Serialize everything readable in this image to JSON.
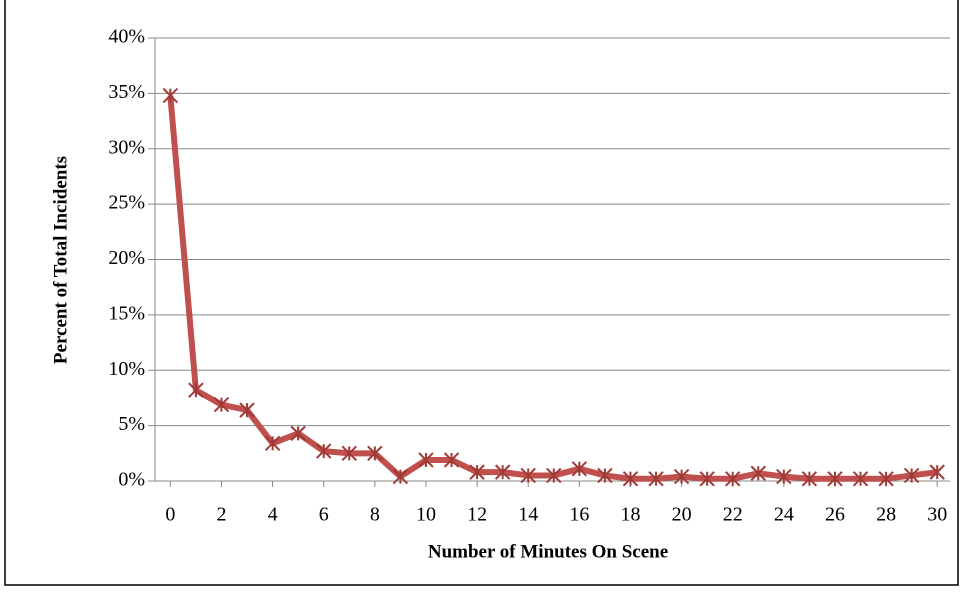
{
  "chart_data": {
    "type": "line",
    "xlabel": "Number of Minutes On Scene",
    "ylabel": "Percent of Total Incidents",
    "x": [
      0,
      1,
      2,
      3,
      4,
      5,
      6,
      7,
      8,
      9,
      10,
      11,
      12,
      13,
      14,
      15,
      16,
      17,
      18,
      19,
      20,
      21,
      22,
      23,
      24,
      25,
      26,
      27,
      28,
      29,
      30
    ],
    "series": [
      {
        "color": "#c0504d",
        "values": [
          34.8,
          8.2,
          6.9,
          6.4,
          3.4,
          4.3,
          2.7,
          2.5,
          2.5,
          0.4,
          1.9,
          1.9,
          0.8,
          0.8,
          0.5,
          0.5,
          1.1,
          0.5,
          0.2,
          0.2,
          0.4,
          0.2,
          0.2,
          0.7,
          0.4,
          0.2,
          0.2,
          0.2,
          0.2,
          0.5,
          0.8
        ]
      }
    ],
    "xlim": [
      -0.6,
      30.5
    ],
    "xticks": [
      0,
      2,
      4,
      6,
      8,
      10,
      12,
      14,
      16,
      18,
      20,
      22,
      24,
      26,
      28,
      30
    ],
    "ylim": [
      0,
      40
    ],
    "yticks": [
      {
        "value": 0,
        "label": "0%"
      },
      {
        "value": 5,
        "label": "5%"
      },
      {
        "value": 10,
        "label": "10%"
      },
      {
        "value": 15,
        "label": "15%"
      },
      {
        "value": 20,
        "label": "20%"
      },
      {
        "value": 25,
        "label": "25%"
      },
      {
        "value": 30,
        "label": "30%"
      },
      {
        "value": 35,
        "label": "35%"
      },
      {
        "value": 40,
        "label": "40%"
      }
    ],
    "grid": true
  }
}
